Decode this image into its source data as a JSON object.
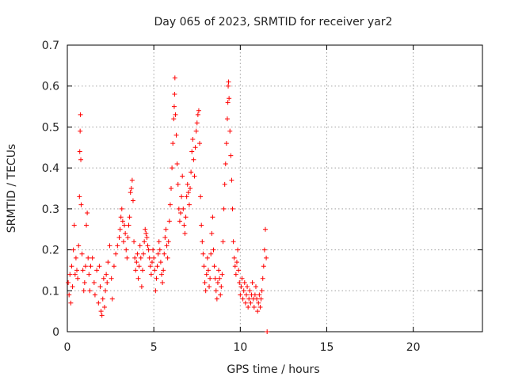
{
  "chart_data": {
    "type": "scatter",
    "title": "Day 065 of 2023, SRMTID for receiver yar2",
    "xlabel": "GPS time / hours",
    "ylabel": "SRMTID / TECUs",
    "xlim": [
      0,
      24
    ],
    "ylim": [
      0,
      0.7
    ],
    "xticks": [
      0,
      5,
      10,
      15,
      20
    ],
    "xtick_labels": [
      "0",
      "5",
      "10",
      "15",
      "20"
    ],
    "yticks": [
      0,
      0.1,
      0.2,
      0.3,
      0.4,
      0.5,
      0.6,
      0.7
    ],
    "ytick_labels": [
      "0",
      "0.1",
      "0.2",
      "0.3",
      "0.4",
      "0.5",
      "0.6",
      "0.7"
    ],
    "grid": true,
    "marker": "+",
    "color": "#ff0000",
    "series": [
      {
        "name": "yar2",
        "points": [
          [
            0.05,
            0.12
          ],
          [
            0.1,
            0.09
          ],
          [
            0.15,
            0.14
          ],
          [
            0.2,
            0.07
          ],
          [
            0.25,
            0.16
          ],
          [
            0.3,
            0.11
          ],
          [
            0.35,
            0.2
          ],
          [
            0.4,
            0.26
          ],
          [
            0.45,
            0.14
          ],
          [
            0.5,
            0.18
          ],
          [
            0.55,
            0.15
          ],
          [
            0.6,
            0.13
          ],
          [
            0.65,
            0.21
          ],
          [
            0.7,
            0.33
          ],
          [
            0.72,
            0.44
          ],
          [
            0.74,
            0.49
          ],
          [
            0.76,
            0.53
          ],
          [
            0.78,
            0.42
          ],
          [
            0.8,
            0.31
          ],
          [
            0.85,
            0.19
          ],
          [
            0.9,
            0.15
          ],
          [
            0.95,
            0.1
          ],
          [
            1.0,
            0.12
          ],
          [
            1.05,
            0.16
          ],
          [
            1.1,
            0.26
          ],
          [
            1.15,
            0.29
          ],
          [
            1.2,
            0.18
          ],
          [
            1.25,
            0.14
          ],
          [
            1.3,
            0.1
          ],
          [
            1.35,
            0.16
          ],
          [
            1.45,
            0.18
          ],
          [
            1.55,
            0.12
          ],
          [
            1.6,
            0.09
          ],
          [
            1.7,
            0.15
          ],
          [
            1.8,
            0.07
          ],
          [
            1.85,
            0.16
          ],
          [
            1.9,
            0.11
          ],
          [
            1.95,
            0.05
          ],
          [
            2.0,
            0.04
          ],
          [
            2.05,
            0.08
          ],
          [
            2.1,
            0.13
          ],
          [
            2.15,
            0.06
          ],
          [
            2.2,
            0.1
          ],
          [
            2.25,
            0.14
          ],
          [
            2.3,
            0.12
          ],
          [
            2.35,
            0.17
          ],
          [
            2.45,
            0.21
          ],
          [
            2.55,
            0.13
          ],
          [
            2.6,
            0.08
          ],
          [
            2.7,
            0.16
          ],
          [
            2.8,
            0.19
          ],
          [
            2.9,
            0.21
          ],
          [
            3.0,
            0.23
          ],
          [
            3.05,
            0.25
          ],
          [
            3.1,
            0.28
          ],
          [
            3.15,
            0.3
          ],
          [
            3.2,
            0.27
          ],
          [
            3.25,
            0.22
          ],
          [
            3.3,
            0.26
          ],
          [
            3.35,
            0.24
          ],
          [
            3.4,
            0.2
          ],
          [
            3.45,
            0.18
          ],
          [
            3.5,
            0.23
          ],
          [
            3.55,
            0.26
          ],
          [
            3.6,
            0.28
          ],
          [
            3.65,
            0.34
          ],
          [
            3.7,
            0.35
          ],
          [
            3.75,
            0.37
          ],
          [
            3.8,
            0.32
          ],
          [
            3.85,
            0.22
          ],
          [
            3.9,
            0.18
          ],
          [
            3.95,
            0.15
          ],
          [
            4.0,
            0.17
          ],
          [
            4.05,
            0.19
          ],
          [
            4.1,
            0.13
          ],
          [
            4.15,
            0.16
          ],
          [
            4.2,
            0.21
          ],
          [
            4.25,
            0.18
          ],
          [
            4.3,
            0.11
          ],
          [
            4.35,
            0.15
          ],
          [
            4.4,
            0.19
          ],
          [
            4.45,
            0.22
          ],
          [
            4.5,
            0.25
          ],
          [
            4.55,
            0.24
          ],
          [
            4.6,
            0.23
          ],
          [
            4.65,
            0.21
          ],
          [
            4.7,
            0.2
          ],
          [
            4.75,
            0.18
          ],
          [
            4.8,
            0.16
          ],
          [
            4.85,
            0.14
          ],
          [
            4.9,
            0.17
          ],
          [
            4.95,
            0.2
          ],
          [
            5.0,
            0.18
          ],
          [
            5.05,
            0.15
          ],
          [
            5.1,
            0.1
          ],
          [
            5.15,
            0.13
          ],
          [
            5.2,
            0.16
          ],
          [
            5.25,
            0.19
          ],
          [
            5.3,
            0.22
          ],
          [
            5.35,
            0.2
          ],
          [
            5.4,
            0.17
          ],
          [
            5.45,
            0.14
          ],
          [
            5.5,
            0.12
          ],
          [
            5.55,
            0.15
          ],
          [
            5.6,
            0.19
          ],
          [
            5.65,
            0.23
          ],
          [
            5.7,
            0.25
          ],
          [
            5.75,
            0.21
          ],
          [
            5.8,
            0.18
          ],
          [
            5.85,
            0.22
          ],
          [
            5.9,
            0.27
          ],
          [
            5.95,
            0.31
          ],
          [
            6.0,
            0.35
          ],
          [
            6.05,
            0.4
          ],
          [
            6.1,
            0.46
          ],
          [
            6.15,
            0.52
          ],
          [
            6.18,
            0.55
          ],
          [
            6.2,
            0.58
          ],
          [
            6.22,
            0.62
          ],
          [
            6.25,
            0.53
          ],
          [
            6.3,
            0.48
          ],
          [
            6.35,
            0.41
          ],
          [
            6.4,
            0.36
          ],
          [
            6.45,
            0.3
          ],
          [
            6.5,
            0.27
          ],
          [
            6.55,
            0.29
          ],
          [
            6.6,
            0.33
          ],
          [
            6.65,
            0.38
          ],
          [
            6.7,
            0.3
          ],
          [
            6.75,
            0.26
          ],
          [
            6.8,
            0.24
          ],
          [
            6.85,
            0.28
          ],
          [
            6.9,
            0.33
          ],
          [
            6.95,
            0.36
          ],
          [
            7.0,
            0.34
          ],
          [
            7.05,
            0.31
          ],
          [
            7.1,
            0.35
          ],
          [
            7.15,
            0.39
          ],
          [
            7.2,
            0.44
          ],
          [
            7.25,
            0.47
          ],
          [
            7.3,
            0.42
          ],
          [
            7.35,
            0.38
          ],
          [
            7.4,
            0.45
          ],
          [
            7.45,
            0.49
          ],
          [
            7.5,
            0.51
          ],
          [
            7.55,
            0.53
          ],
          [
            7.6,
            0.54
          ],
          [
            7.65,
            0.46
          ],
          [
            7.7,
            0.33
          ],
          [
            7.75,
            0.26
          ],
          [
            7.8,
            0.22
          ],
          [
            7.85,
            0.19
          ],
          [
            7.9,
            0.16
          ],
          [
            7.95,
            0.12
          ],
          [
            8.0,
            0.1
          ],
          [
            8.05,
            0.14
          ],
          [
            8.1,
            0.18
          ],
          [
            8.15,
            0.15
          ],
          [
            8.2,
            0.11
          ],
          [
            8.25,
            0.13
          ],
          [
            8.3,
            0.19
          ],
          [
            8.35,
            0.24
          ],
          [
            8.4,
            0.28
          ],
          [
            8.45,
            0.2
          ],
          [
            8.5,
            0.16
          ],
          [
            8.55,
            0.13
          ],
          [
            8.6,
            0.1
          ],
          [
            8.65,
            0.08
          ],
          [
            8.7,
            0.12
          ],
          [
            8.75,
            0.15
          ],
          [
            8.8,
            0.13
          ],
          [
            8.85,
            0.09
          ],
          [
            8.9,
            0.11
          ],
          [
            8.95,
            0.14
          ],
          [
            9.0,
            0.22
          ],
          [
            9.05,
            0.3
          ],
          [
            9.1,
            0.36
          ],
          [
            9.15,
            0.41
          ],
          [
            9.2,
            0.46
          ],
          [
            9.25,
            0.52
          ],
          [
            9.28,
            0.56
          ],
          [
            9.3,
            0.6
          ],
          [
            9.32,
            0.61
          ],
          [
            9.35,
            0.57
          ],
          [
            9.4,
            0.49
          ],
          [
            9.45,
            0.43
          ],
          [
            9.5,
            0.37
          ],
          [
            9.55,
            0.3
          ],
          [
            9.6,
            0.22
          ],
          [
            9.65,
            0.18
          ],
          [
            9.7,
            0.16
          ],
          [
            9.75,
            0.14
          ],
          [
            9.8,
            0.17
          ],
          [
            9.85,
            0.2
          ],
          [
            9.9,
            0.15
          ],
          [
            9.95,
            0.12
          ],
          [
            10.0,
            0.09
          ],
          [
            10.05,
            0.11
          ],
          [
            10.1,
            0.13
          ],
          [
            10.15,
            0.08
          ],
          [
            10.2,
            0.1
          ],
          [
            10.25,
            0.12
          ],
          [
            10.3,
            0.07
          ],
          [
            10.35,
            0.09
          ],
          [
            10.4,
            0.11
          ],
          [
            10.45,
            0.06
          ],
          [
            10.5,
            0.08
          ],
          [
            10.55,
            0.1
          ],
          [
            10.6,
            0.07
          ],
          [
            10.65,
            0.09
          ],
          [
            10.7,
            0.12
          ],
          [
            10.75,
            0.08
          ],
          [
            10.8,
            0.06
          ],
          [
            10.85,
            0.09
          ],
          [
            10.9,
            0.11
          ],
          [
            10.95,
            0.08
          ],
          [
            11.0,
            0.05
          ],
          [
            11.05,
            0.07
          ],
          [
            11.1,
            0.09
          ],
          [
            11.15,
            0.06
          ],
          [
            11.2,
            0.08
          ],
          [
            11.25,
            0.1
          ],
          [
            11.3,
            0.13
          ],
          [
            11.35,
            0.16
          ],
          [
            11.4,
            0.2
          ],
          [
            11.45,
            0.25
          ],
          [
            11.5,
            0.18
          ],
          [
            11.55,
            0.0
          ]
        ]
      }
    ]
  }
}
